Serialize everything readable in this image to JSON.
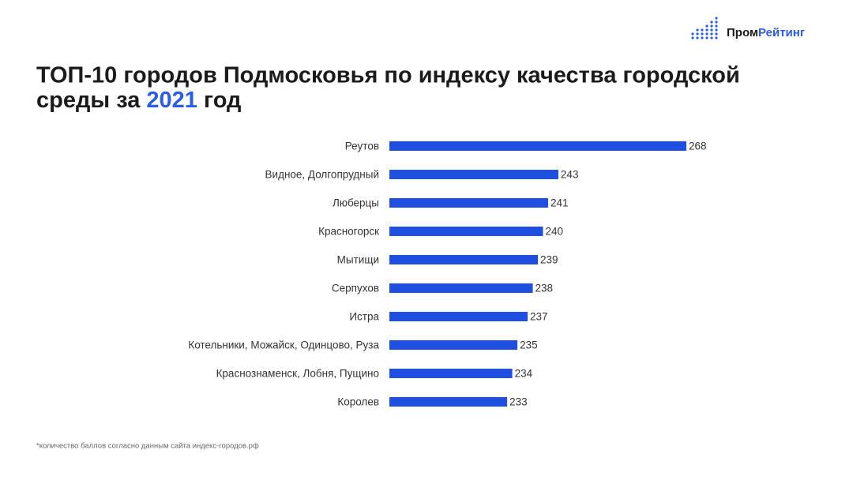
{
  "logo": [
    "Пром",
    "Рейтинг"
  ],
  "chart_data": {
    "type": "bar",
    "orientation": "horizontal",
    "title_parts": [
      "ТОП-10 городов Подмосковья по индексу качества городской среды за",
      "2021",
      "год"
    ],
    "categories": [
      "Реутов",
      "Видное, Долгопрудный",
      "Люберцы",
      "Красногорск",
      "Мытищи",
      "Серпухов",
      "Истра",
      "Котельники, Можайск, Одинцово, Руза",
      "Краснознаменск, Лобня, Пущино",
      "Королев"
    ],
    "values": [
      268,
      243,
      241,
      240,
      239,
      238,
      237,
      235,
      234,
      233
    ],
    "color": "#1f4fe0",
    "xlim": [
      210,
      268
    ],
    "footnote": "*количество баллов согласно данным сайта индекс-городов.рф"
  }
}
